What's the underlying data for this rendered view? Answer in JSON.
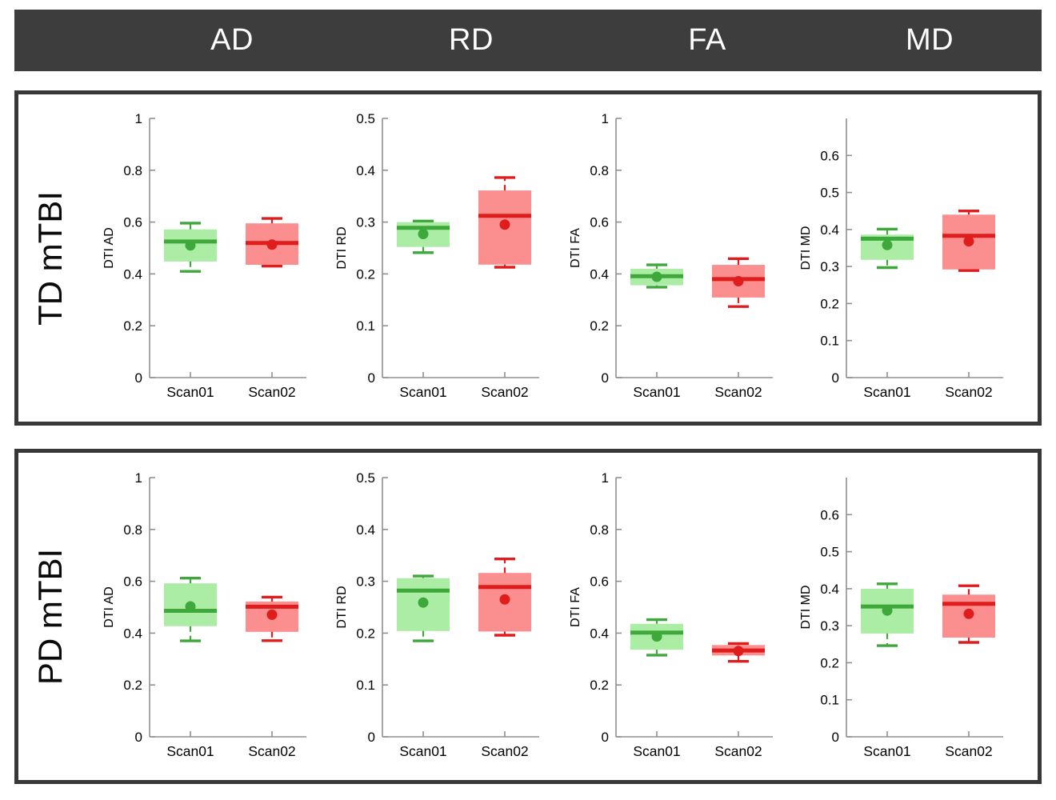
{
  "figure": {
    "header": {
      "columns": [
        "AD",
        "RD",
        "FA",
        "MD"
      ],
      "bg": "#3d3d3d",
      "text_color": "#ffffff"
    },
    "row_labels": [
      "TD mTBI",
      "PD mTBI"
    ]
  },
  "colors": {
    "green": {
      "fill": "#aceda6",
      "line": "#3fa83a"
    },
    "red": {
      "fill": "#fb8e8e",
      "line": "#e01d1d"
    },
    "axis": "#909090",
    "text": "#000000",
    "panel_border": "#383838"
  },
  "chart_data": [
    {
      "type": "box",
      "panel": "TD mTBI",
      "metric": "AD",
      "ylabel": "DTI AD",
      "ylim": [
        0,
        1
      ],
      "yticks": [
        0,
        0.2,
        0.4,
        0.6,
        0.8,
        1
      ],
      "categories": [
        "Scan01",
        "Scan02"
      ],
      "grid": false,
      "series": [
        {
          "name": "Scan01",
          "color": "green",
          "whisker_low": 0.41,
          "q1": 0.448,
          "median": 0.525,
          "mean": 0.51,
          "q3": 0.572,
          "whisker_high": 0.596
        },
        {
          "name": "Scan02",
          "color": "red",
          "whisker_low": 0.43,
          "q1": 0.435,
          "median": 0.519,
          "mean": 0.513,
          "q3": 0.595,
          "whisker_high": 0.614
        }
      ]
    },
    {
      "type": "box",
      "panel": "TD mTBI",
      "metric": "RD",
      "ylabel": "DTI RD",
      "ylim": [
        0,
        0.5
      ],
      "yticks": [
        0,
        0.1,
        0.2,
        0.3,
        0.4,
        0.5
      ],
      "categories": [
        "Scan01",
        "Scan02"
      ],
      "grid": false,
      "series": [
        {
          "name": "Scan01",
          "color": "green",
          "whisker_low": 0.241,
          "q1": 0.252,
          "median": 0.289,
          "mean": 0.277,
          "q3": 0.3,
          "whisker_high": 0.302
        },
        {
          "name": "Scan02",
          "color": "red",
          "whisker_low": 0.213,
          "q1": 0.218,
          "median": 0.312,
          "mean": 0.295,
          "q3": 0.361,
          "whisker_high": 0.386
        }
      ]
    },
    {
      "type": "box",
      "panel": "TD mTBI",
      "metric": "FA",
      "ylabel": "DTI FA",
      "ylim": [
        0,
        1
      ],
      "yticks": [
        0,
        0.2,
        0.4,
        0.6,
        0.8,
        1
      ],
      "categories": [
        "Scan01",
        "Scan02"
      ],
      "grid": false,
      "series": [
        {
          "name": "Scan01",
          "color": "green",
          "whisker_low": 0.349,
          "q1": 0.356,
          "median": 0.391,
          "mean": 0.389,
          "q3": 0.42,
          "whisker_high": 0.435
        },
        {
          "name": "Scan02",
          "color": "red",
          "whisker_low": 0.274,
          "q1": 0.309,
          "median": 0.38,
          "mean": 0.372,
          "q3": 0.435,
          "whisker_high": 0.459
        }
      ]
    },
    {
      "type": "box",
      "panel": "TD mTBI",
      "metric": "MD",
      "ylabel": "DTI MD",
      "ylim": [
        0,
        0.7
      ],
      "yticks": [
        0,
        0.1,
        0.2,
        0.3,
        0.4,
        0.5,
        0.6
      ],
      "categories": [
        "Scan01",
        "Scan02"
      ],
      "grid": false,
      "series": [
        {
          "name": "Scan01",
          "color": "green",
          "whisker_low": 0.297,
          "q1": 0.318,
          "median": 0.375,
          "mean": 0.358,
          "q3": 0.386,
          "whisker_high": 0.401
        },
        {
          "name": "Scan02",
          "color": "red",
          "whisker_low": 0.289,
          "q1": 0.292,
          "median": 0.383,
          "mean": 0.368,
          "q3": 0.44,
          "whisker_high": 0.45
        }
      ]
    },
    {
      "type": "box",
      "panel": "PD mTBI",
      "metric": "AD",
      "ylabel": "DTI AD",
      "ylim": [
        0,
        1
      ],
      "yticks": [
        0,
        0.2,
        0.4,
        0.6,
        0.8,
        1
      ],
      "categories": [
        "Scan01",
        "Scan02"
      ],
      "grid": false,
      "series": [
        {
          "name": "Scan01",
          "color": "green",
          "whisker_low": 0.37,
          "q1": 0.427,
          "median": 0.486,
          "mean": 0.503,
          "q3": 0.592,
          "whisker_high": 0.612
        },
        {
          "name": "Scan02",
          "color": "red",
          "whisker_low": 0.371,
          "q1": 0.405,
          "median": 0.502,
          "mean": 0.471,
          "q3": 0.522,
          "whisker_high": 0.539
        }
      ]
    },
    {
      "type": "box",
      "panel": "PD mTBI",
      "metric": "RD",
      "ylabel": "DTI RD",
      "ylim": [
        0,
        0.5
      ],
      "yticks": [
        0,
        0.1,
        0.2,
        0.3,
        0.4,
        0.5
      ],
      "categories": [
        "Scan01",
        "Scan02"
      ],
      "grid": false,
      "series": [
        {
          "name": "Scan01",
          "color": "green",
          "whisker_low": 0.185,
          "q1": 0.204,
          "median": 0.282,
          "mean": 0.259,
          "q3": 0.306,
          "whisker_high": 0.31
        },
        {
          "name": "Scan02",
          "color": "red",
          "whisker_low": 0.196,
          "q1": 0.203,
          "median": 0.289,
          "mean": 0.265,
          "q3": 0.316,
          "whisker_high": 0.343
        }
      ]
    },
    {
      "type": "box",
      "panel": "PD mTBI",
      "metric": "FA",
      "ylabel": "DTI FA",
      "ylim": [
        0,
        1
      ],
      "yticks": [
        0,
        0.2,
        0.4,
        0.6,
        0.8,
        1
      ],
      "categories": [
        "Scan01",
        "Scan02"
      ],
      "grid": false,
      "series": [
        {
          "name": "Scan01",
          "color": "green",
          "whisker_low": 0.315,
          "q1": 0.336,
          "median": 0.402,
          "mean": 0.387,
          "q3": 0.436,
          "whisker_high": 0.452
        },
        {
          "name": "Scan02",
          "color": "red",
          "whisker_low": 0.291,
          "q1": 0.314,
          "median": 0.333,
          "mean": 0.331,
          "q3": 0.354,
          "whisker_high": 0.36
        }
      ]
    },
    {
      "type": "box",
      "panel": "PD mTBI",
      "metric": "MD",
      "ylabel": "DTI MD",
      "ylim": [
        0,
        0.7
      ],
      "yticks": [
        0,
        0.1,
        0.2,
        0.3,
        0.4,
        0.5,
        0.6
      ],
      "categories": [
        "Scan01",
        "Scan02"
      ],
      "grid": false,
      "series": [
        {
          "name": "Scan01",
          "color": "green",
          "whisker_low": 0.246,
          "q1": 0.279,
          "median": 0.352,
          "mean": 0.341,
          "q3": 0.4,
          "whisker_high": 0.413
        },
        {
          "name": "Scan02",
          "color": "red",
          "whisker_low": 0.255,
          "q1": 0.268,
          "median": 0.359,
          "mean": 0.332,
          "q3": 0.384,
          "whisker_high": 0.408
        }
      ]
    }
  ]
}
